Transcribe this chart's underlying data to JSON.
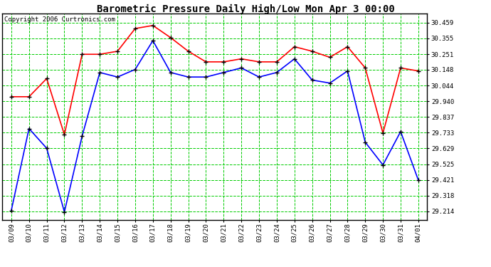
{
  "title": "Barometric Pressure Daily High/Low Mon Apr 3 00:00",
  "copyright": "Copyright 2006 Curtronics.com",
  "dates": [
    "03/09",
    "03/10",
    "03/11",
    "03/12",
    "03/13",
    "03/14",
    "03/15",
    "03/16",
    "03/17",
    "03/18",
    "03/19",
    "03/20",
    "03/21",
    "03/22",
    "03/23",
    "03/24",
    "03/25",
    "03/26",
    "03/27",
    "03/28",
    "03/29",
    "03/30",
    "03/31",
    "04/01"
  ],
  "high": [
    29.97,
    29.97,
    30.09,
    29.72,
    30.25,
    30.25,
    30.27,
    30.42,
    30.44,
    30.36,
    30.27,
    30.2,
    30.2,
    30.22,
    30.2,
    30.2,
    30.3,
    30.27,
    30.23,
    30.3,
    30.16,
    29.73,
    30.16,
    30.14
  ],
  "low": [
    29.22,
    29.76,
    29.63,
    29.21,
    29.71,
    30.13,
    30.1,
    30.15,
    30.34,
    30.13,
    30.1,
    30.1,
    30.13,
    30.16,
    30.1,
    30.13,
    30.22,
    30.08,
    30.06,
    30.14,
    29.67,
    29.52,
    29.74,
    29.42
  ],
  "high_color": "#ff0000",
  "low_color": "#0000ff",
  "marker_color": "#000000",
  "grid_color": "#00cc00",
  "bg_color": "#ffffff",
  "title_fontsize": 10,
  "copyright_fontsize": 6.5,
  "tick_fontsize": 6.5,
  "yticks": [
    29.214,
    29.318,
    29.421,
    29.525,
    29.629,
    29.733,
    29.837,
    29.94,
    30.044,
    30.148,
    30.251,
    30.355,
    30.459
  ],
  "ylim_min": 29.155,
  "ylim_max": 30.52,
  "marker_size": 4,
  "line_width": 1.2
}
